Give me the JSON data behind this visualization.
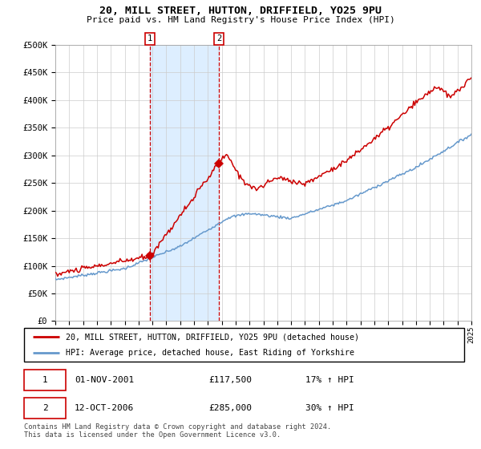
{
  "title": "20, MILL STREET, HUTTON, DRIFFIELD, YO25 9PU",
  "subtitle": "Price paid vs. HM Land Registry's House Price Index (HPI)",
  "property_label": "20, MILL STREET, HUTTON, DRIFFIELD, YO25 9PU (detached house)",
  "hpi_label": "HPI: Average price, detached house, East Riding of Yorkshire",
  "red_color": "#cc0000",
  "blue_color": "#6699cc",
  "shade_color": "#ddeeff",
  "purchase1_date_num": 2001.833,
  "purchase1_price": 117500,
  "purchase1_text": "01-NOV-2001",
  "purchase1_pct": "17% ↑ HPI",
  "purchase2_date_num": 2006.786,
  "purchase2_price": 285000,
  "purchase2_text": "12-OCT-2006",
  "purchase2_pct": "30% ↑ HPI",
  "xmin": 1995,
  "xmax": 2025,
  "ymin": 0,
  "ymax": 500000,
  "yticks": [
    0,
    50000,
    100000,
    150000,
    200000,
    250000,
    300000,
    350000,
    400000,
    450000,
    500000
  ],
  "footnote": "Contains HM Land Registry data © Crown copyright and database right 2024.\nThis data is licensed under the Open Government Licence v3.0.",
  "bg_color": "#ffffff",
  "grid_color": "#cccccc"
}
